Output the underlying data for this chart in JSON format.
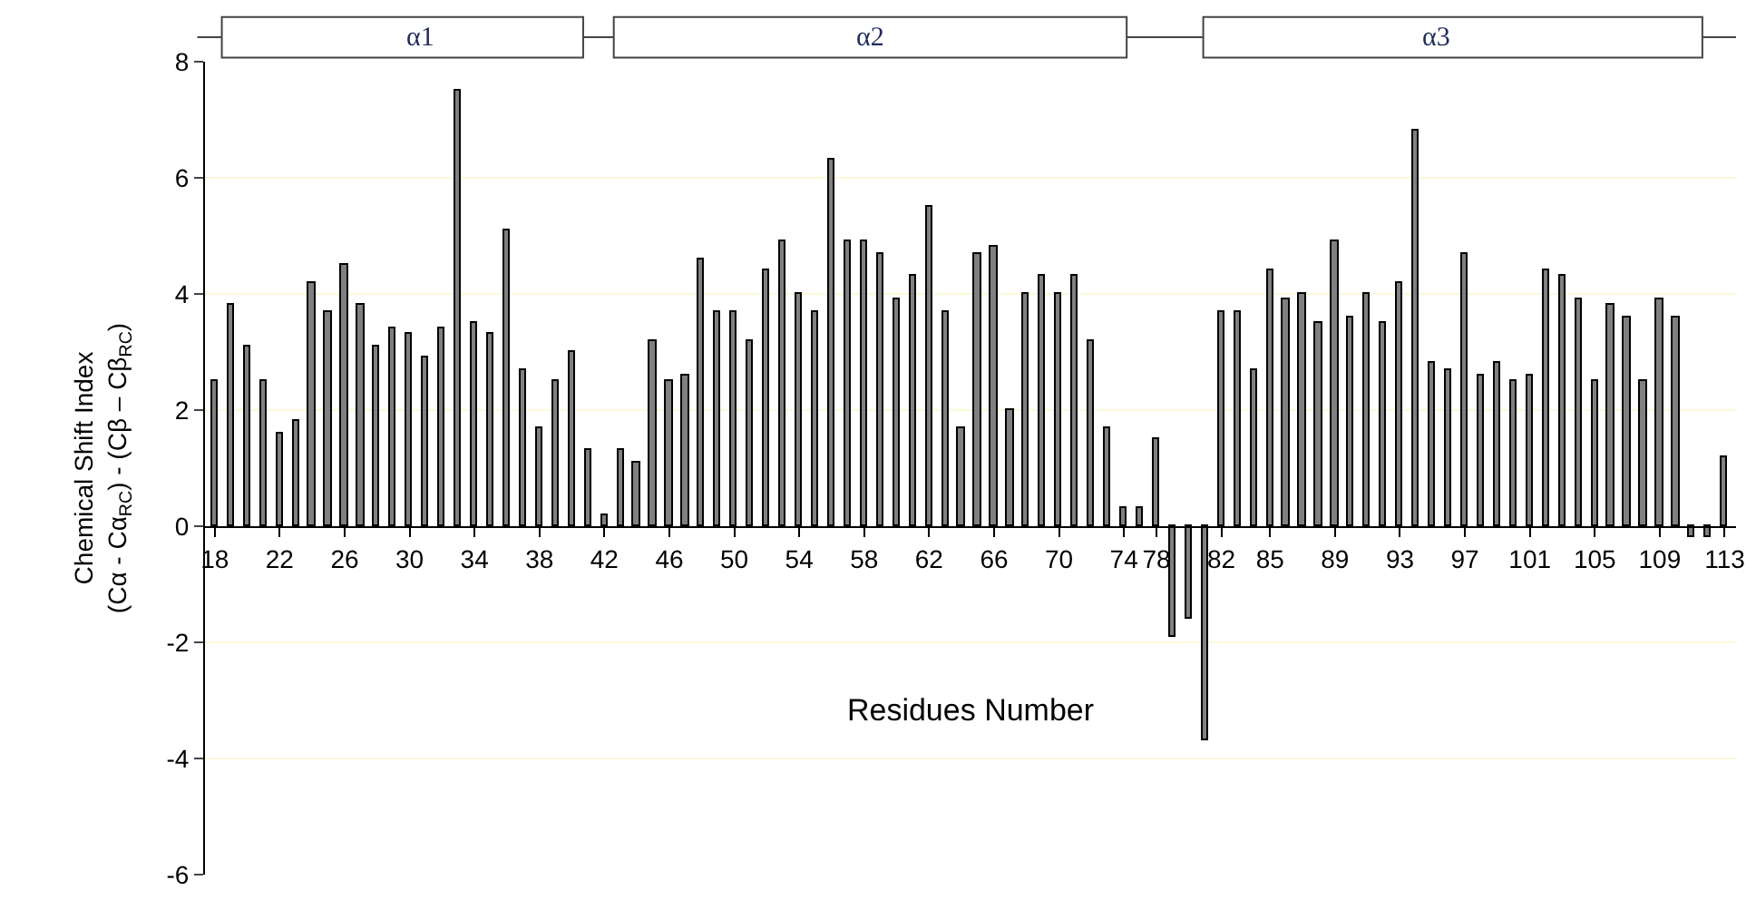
{
  "chart_data": {
    "type": "bar",
    "xlabel": "Residues Number",
    "ylabel": "Chemical Shift Index\n(Cα - Cα$_{RC}$) - (Cβ – Cβ$_{RC}$)",
    "categories": [
      "18",
      null,
      null,
      null,
      "22",
      null,
      null,
      null,
      "26",
      null,
      null,
      null,
      "30",
      null,
      null,
      null,
      "34",
      null,
      null,
      null,
      "38",
      null,
      null,
      null,
      "42",
      null,
      null,
      null,
      "46",
      null,
      null,
      null,
      "50",
      null,
      null,
      null,
      "54",
      null,
      null,
      null,
      "58",
      null,
      null,
      null,
      "62",
      null,
      null,
      null,
      "66",
      null,
      null,
      null,
      "70",
      null,
      null,
      null,
      "74",
      null,
      "78",
      null,
      null,
      null,
      "82",
      null,
      null,
      "85",
      null,
      null,
      null,
      "89",
      null,
      null,
      null,
      "93",
      null,
      null,
      null,
      "97",
      null,
      null,
      null,
      "101",
      null,
      null,
      null,
      "105",
      null,
      null,
      null,
      "109",
      null,
      null,
      null,
      "113"
    ],
    "series": [
      {
        "color": "#808080",
        "values": [
          2.5,
          3.8,
          3.1,
          2.5,
          1.6,
          1.8,
          4.2,
          3.7,
          4.5,
          3.8,
          3.1,
          3.4,
          3.3,
          2.9,
          3.4,
          7.5,
          3.5,
          3.3,
          5.1,
          2.7,
          1.7,
          2.5,
          3.0,
          1.3,
          0.2,
          1.3,
          1.1,
          3.2,
          2.5,
          2.6,
          4.6,
          3.7,
          3.7,
          3.2,
          4.4,
          4.9,
          4.0,
          3.7,
          6.3,
          4.9,
          4.9,
          4.7,
          3.9,
          4.3,
          5.5,
          3.7,
          1.7,
          4.7,
          4.8,
          2.0,
          4.0,
          4.3,
          4.0,
          4.3,
          3.2,
          1.7,
          0.3,
          0.3,
          1.5,
          -1.9,
          -1.6,
          -3.7,
          3.7,
          3.7,
          2.7,
          4.4,
          3.9,
          4.0,
          3.5,
          4.9,
          3.6,
          4.0,
          3.5,
          4.2,
          6.8,
          2.8,
          2.7,
          4.7,
          2.6,
          2.8,
          2.5,
          2.6,
          4.4,
          4.3,
          3.9,
          2.5,
          3.8,
          3.6,
          2.5,
          3.9,
          3.6,
          -0.2,
          -0.2,
          1.2
        ]
      }
    ],
    "ylim": [
      -6,
      8
    ],
    "yticks": [
      -6,
      -4,
      -2,
      0,
      2,
      4,
      6,
      8
    ],
    "grid": "y",
    "annotations": [
      "α1",
      "α2",
      "α3"
    ]
  }
}
